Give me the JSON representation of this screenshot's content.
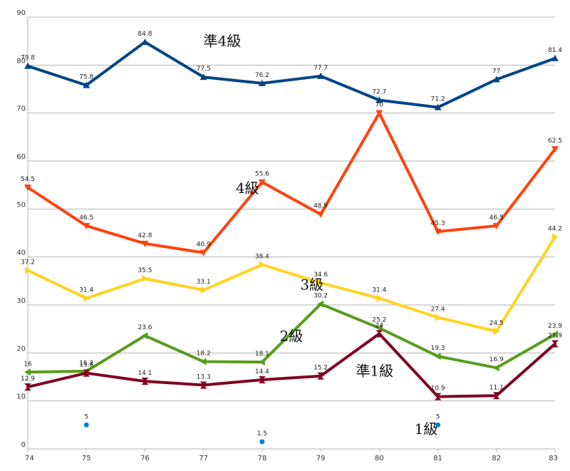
{
  "chart_data": {
    "type": "line",
    "x": [
      74,
      75,
      76,
      77,
      78,
      79,
      80,
      81,
      82,
      83
    ],
    "ylim": [
      0,
      90
    ],
    "yticks": [
      0,
      10,
      20,
      30,
      40,
      50,
      60,
      70,
      80,
      90
    ],
    "grid": "horizontal",
    "title": "",
    "xlabel": "",
    "ylabel": "",
    "series": [
      {
        "name": "準4級",
        "color": "#004586",
        "marker": "triangle-up",
        "label_x": 77.0,
        "label_y": 84.0,
        "values": [
          79.8,
          75.8,
          84.8,
          77.5,
          76.2,
          77.7,
          72.7,
          71.2,
          77,
          81.4
        ],
        "labels": [
          "79.8",
          "75.8",
          "84.8",
          "77.5",
          "76.2",
          "77.7",
          "72.7",
          "71.2",
          "77",
          "81.4"
        ]
      },
      {
        "name": "4級",
        "color": "#ff420e",
        "marker": "triangle-down",
        "label_x": 77.55,
        "label_y": 53.3,
        "values": [
          54.5,
          46.5,
          42.8,
          40.9,
          55.6,
          48.9,
          70,
          45.3,
          46.5,
          62.5
        ],
        "labels": [
          "54.5",
          "46.5",
          "42.8",
          "40.9",
          "55.6",
          "48.9",
          "70",
          "45.3",
          "46.5",
          "62.5"
        ]
      },
      {
        "name": "3級",
        "color": "#ffd320",
        "marker": "triangle-right",
        "label_x": 78.65,
        "label_y": 33.2,
        "values": [
          37.2,
          31.4,
          35.5,
          33.1,
          38.4,
          34.6,
          31.4,
          27.4,
          24.5,
          44.2
        ],
        "labels": [
          "37.2",
          "31.4",
          "35.5",
          "33.1",
          "38.4",
          "34.6",
          "31.4",
          "27.4",
          "24.5",
          "44.2"
        ]
      },
      {
        "name": "2級",
        "color": "#579d1c",
        "marker": "triangle-left",
        "label_x": 78.3,
        "label_y": 22.5,
        "values": [
          16,
          16.2,
          23.6,
          18.2,
          18.1,
          30.2,
          25.2,
          19.3,
          16.9,
          23.9
        ],
        "labels": [
          "16",
          "16.2",
          "23.6",
          "18.2",
          "18.1",
          "30.2",
          "25.2",
          "19.3",
          "16.9",
          "23.9"
        ]
      },
      {
        "name": "準1級",
        "color": "#7e0021",
        "marker": "bowtie",
        "label_x": 79.6,
        "label_y": 15.2,
        "values": [
          12.9,
          15.8,
          14.1,
          13.3,
          14.4,
          15.2,
          24,
          10.9,
          11.1,
          21.9
        ],
        "labels": [
          "12.9",
          "15.8",
          "14.1",
          "13.3",
          "14.4",
          "15.2",
          "24",
          "10.9",
          "11.1",
          "21.9"
        ]
      },
      {
        "name": "1級",
        "color": "#0084d1",
        "marker": "circle",
        "label_x": 80.6,
        "label_y": 3.1,
        "values": [
          null,
          5,
          null,
          null,
          1.5,
          null,
          null,
          5,
          null,
          null
        ],
        "labels": [
          "",
          "5",
          "",
          "",
          "1.5",
          "",
          "",
          "5",
          "",
          ""
        ]
      }
    ]
  }
}
